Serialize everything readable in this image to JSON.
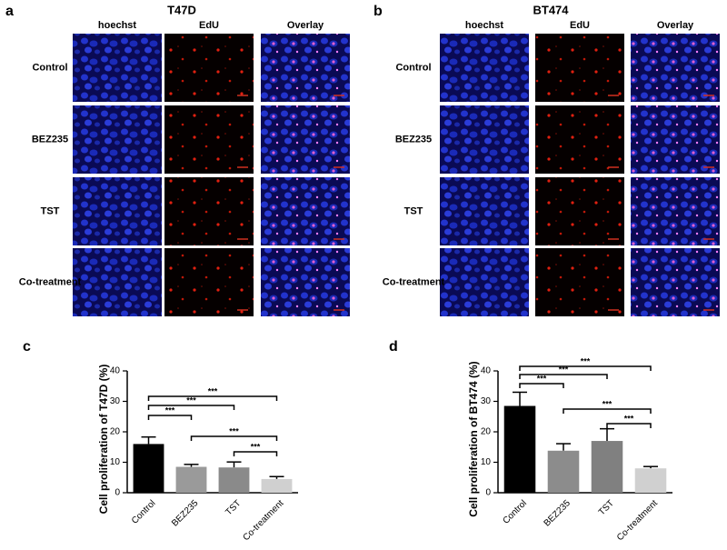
{
  "panels": [
    {
      "letter": "a",
      "title": "T47D",
      "columns": [
        "hoechst",
        "EdU",
        "Overlay"
      ],
      "rows": [
        "Control",
        "BEZ235",
        "TST",
        "Co-treatment"
      ]
    },
    {
      "letter": "b",
      "title": "BT474",
      "columns": [
        "hoechst",
        "EdU",
        "Overlay"
      ],
      "rows": [
        "Control",
        "BEZ235",
        "TST",
        "Co-treatment"
      ]
    }
  ],
  "chart_data": [
    {
      "type": "bar",
      "panel_label": "c",
      "y_label": "Cell proliferation of T47D (%)",
      "categories": [
        "Control",
        "BEZ235",
        "TST",
        "Co-treatment"
      ],
      "values": [
        16,
        8.5,
        8.3,
        4.5
      ],
      "errors": [
        2.3,
        0.8,
        1.8,
        0.8
      ],
      "colors": [
        "#000000",
        "#9a9a9a",
        "#8a8a8a",
        "#d0d0d0"
      ],
      "ylim": [
        0,
        40
      ],
      "yticks": [
        0,
        10,
        20,
        30,
        40
      ],
      "comparisons": [
        {
          "pair": [
            "Control",
            "BEZ235"
          ],
          "label": "***"
        },
        {
          "pair": [
            "Control",
            "TST"
          ],
          "label": "***"
        },
        {
          "pair": [
            "Control",
            "Co-treatment"
          ],
          "label": "***"
        },
        {
          "pair": [
            "BEZ235",
            "Co-treatment"
          ],
          "label": "***"
        },
        {
          "pair": [
            "TST",
            "Co-treatment"
          ],
          "label": "***"
        }
      ]
    },
    {
      "type": "bar",
      "panel_label": "d",
      "y_label": "Cell proliferation of BT474 (%)",
      "categories": [
        "Control",
        "BEZ235",
        "TST",
        "Co-treatment"
      ],
      "values": [
        28.5,
        13.8,
        17,
        8
      ],
      "errors": [
        4.5,
        2.3,
        4,
        0.6
      ],
      "colors": [
        "#000000",
        "#8c8c8c",
        "#808080",
        "#d0d0d0"
      ],
      "ylim": [
        0,
        40
      ],
      "yticks": [
        0,
        10,
        20,
        30,
        40
      ],
      "comparisons": [
        {
          "pair": [
            "Control",
            "BEZ235"
          ],
          "label": "***"
        },
        {
          "pair": [
            "Control",
            "TST"
          ],
          "label": "***"
        },
        {
          "pair": [
            "Control",
            "Co-treatment"
          ],
          "label": "***"
        },
        {
          "pair": [
            "BEZ235",
            "Co-treatment"
          ],
          "label": "***"
        },
        {
          "pair": [
            "TST",
            "Co-treatment"
          ],
          "label": "***"
        }
      ]
    }
  ]
}
